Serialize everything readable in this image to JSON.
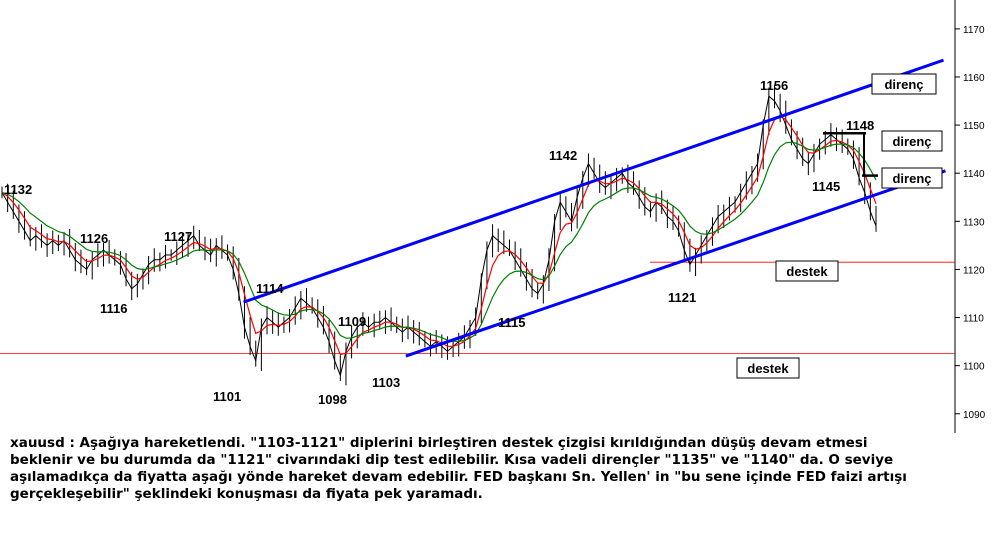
{
  "chart_data": {
    "type": "line",
    "instrument": "xauusd",
    "ylim": [
      1086,
      1176
    ],
    "yticks": [
      1090,
      1100,
      1110,
      1120,
      1130,
      1140,
      1150,
      1160,
      1170
    ],
    "price_labels": [
      "1132",
      "1126",
      "1116",
      "1127",
      "1101",
      "1114",
      "1098",
      "1109",
      "1103",
      "1115",
      "1142",
      "1121",
      "1156",
      "1148",
      "1145"
    ],
    "level_labels": {
      "resistance_1": "direnç",
      "resistance_2": "direnç",
      "resistance_3": "direnç",
      "support_1": "destek",
      "support_2": "destek"
    },
    "horizontal_levels": [
      1121.5,
      1102.5
    ],
    "series": [
      {
        "type": "price",
        "values": [
          1136,
          1134,
          1132,
          1130,
          1128,
          1126,
          1127,
          1126,
          1125,
          1126,
          1125,
          1126,
          1124,
          1122,
          1121,
          1120,
          1122,
          1123,
          1124,
          1123,
          1122,
          1121,
          1118,
          1116,
          1117,
          1119,
          1121,
          1122,
          1122,
          1123,
          1123,
          1124,
          1125,
          1126,
          1127,
          1125,
          1124,
          1123,
          1125,
          1124,
          1123,
          1120,
          1115,
          1108,
          1104,
          1101,
          1108,
          1110,
          1109,
          1108,
          1109,
          1110,
          1112,
          1114,
          1113,
          1112,
          1110,
          1108,
          1105,
          1101,
          1098,
          1103,
          1106,
          1108,
          1109,
          1108,
          1109,
          1109,
          1110,
          1109,
          1108,
          1107,
          1108,
          1107,
          1106,
          1105,
          1104,
          1105,
          1104,
          1103,
          1104,
          1105,
          1106,
          1108,
          1110,
          1118,
          1124,
          1127,
          1126,
          1125,
          1124,
          1122,
          1120,
          1118,
          1116,
          1115,
          1117,
          1122,
          1130,
          1134,
          1132,
          1130,
          1135,
          1139,
          1142,
          1140,
          1138,
          1137,
          1138,
          1139,
          1140,
          1138,
          1137,
          1135,
          1133,
          1132,
          1134,
          1133,
          1131,
          1130,
          1128,
          1124,
          1121,
          1123,
          1125,
          1127,
          1129,
          1131,
          1132,
          1133,
          1134,
          1136,
          1138,
          1140,
          1142,
          1150,
          1156,
          1155,
          1153,
          1150,
          1147,
          1145,
          1143,
          1142,
          1144,
          1146,
          1147,
          1148,
          1147,
          1146,
          1145,
          1143,
          1139,
          1136,
          1132,
          1129
        ]
      },
      {
        "type": "fast-moving-average",
        "color": "#ff0000"
      },
      {
        "type": "slow-moving-average",
        "color": "#008000"
      }
    ],
    "trendlines": [
      {
        "name": "upper-channel",
        "color": "#0000ff",
        "x": [
          0.255,
          0.988
        ],
        "y": [
          1113.2,
          1163.5
        ]
      },
      {
        "name": "lower-channel",
        "color": "#0000ff",
        "x": [
          0.425,
          0.99
        ],
        "y": [
          1102.0,
          1140.5
        ]
      }
    ],
    "colors": {
      "price": "#000000",
      "channel": "#0000ff",
      "support_line": "#ff0000",
      "axis": "#000000"
    }
  },
  "note": {
    "lines": [
      "xauusd : Aşağıya hareketlendi. \"1103-1121\" diplerini birleştiren destek çizgisi kırıldığından düşüş devam etmesi",
      "beklenir ve bu durumda da  \"1121\" civarındaki dip test edilebilir. Kısa vadeli dirençler \"1135\" ve \"1140\" da. O seviye",
      "aşılamadıkça da fiyatta aşağı yönde hareket devam edebilir. FED başkanı Sn. Yellen' in \"bu sene içinde FED faizi artışı",
      "gerçekleşebilir\" şeklindeki konuşması da fiyata pek yaramadı."
    ]
  }
}
